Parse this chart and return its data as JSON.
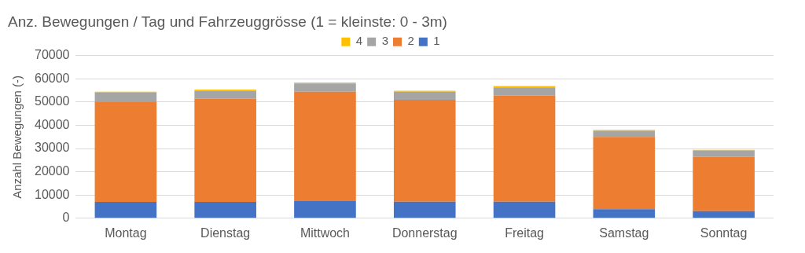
{
  "chart_data": {
    "type": "bar",
    "stacked": true,
    "title": "Anz. Bewegungen / Tag und Fahrzeuggrösse (1 = kleinste: 0 - 3m)",
    "ylabel": "Anzahl Bewegungen (-)",
    "categories": [
      "Montag",
      "Dienstag",
      "Mittwoch",
      "Donnerstag",
      "Freitag",
      "Samstag",
      "Sonntag"
    ],
    "series": [
      {
        "name": "1",
        "color": "#4472c4",
        "values": [
          7000,
          7000,
          7400,
          7100,
          7100,
          3900,
          3100
        ]
      },
      {
        "name": "2",
        "color": "#ed7d31",
        "values": [
          43200,
          44400,
          47100,
          43900,
          45700,
          31100,
          23400
        ]
      },
      {
        "name": "3",
        "color": "#a5a5a5",
        "values": [
          3800,
          3400,
          3500,
          3500,
          3500,
          2600,
          2500
        ]
      },
      {
        "name": "4",
        "color": "#ffc000",
        "values": [
          500,
          600,
          400,
          400,
          600,
          500,
          400
        ]
      }
    ],
    "ylim": [
      0,
      70000
    ],
    "yticks": [
      0,
      10000,
      20000,
      30000,
      40000,
      50000,
      60000,
      70000
    ],
    "grid": "y",
    "legend": "top"
  }
}
